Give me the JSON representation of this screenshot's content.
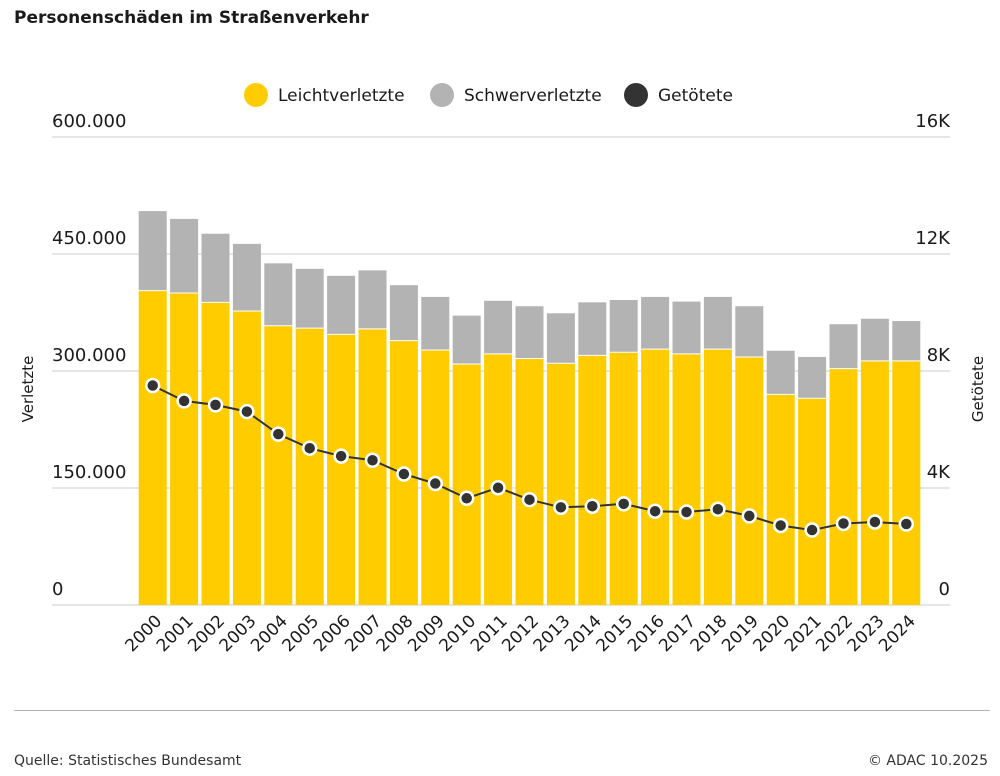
{
  "title": "Personenschäden im Straßenverkehr",
  "footer": {
    "source": "Quelle: Statistisches Bundesamt",
    "copyright": "© ADAC 10.2025"
  },
  "colors": {
    "leicht": "#ffcc00",
    "schwer": "#b3b3b3",
    "getoetete": "#333333",
    "grid": "#cccccc"
  },
  "chart_data": {
    "type": "bar",
    "stacked": true,
    "title": "Personenschäden im Straßenverkehr",
    "categories": [
      "2000",
      "2001",
      "2002",
      "2003",
      "2004",
      "2005",
      "2006",
      "2007",
      "2008",
      "2009",
      "2010",
      "2011",
      "2012",
      "2013",
      "2014",
      "2015",
      "2016",
      "2017",
      "2018",
      "2019",
      "2020",
      "2021",
      "2022",
      "2023",
      "2024"
    ],
    "ylabel_left": "Verletzte",
    "ylabel_right": "Getötete",
    "ylim_left": [
      0,
      600000
    ],
    "ylim_right": [
      0,
      16000
    ],
    "yticks_left": [
      "0",
      "150.000",
      "300.000",
      "450.000",
      "600.000"
    ],
    "yticks_right": [
      "0",
      "4K",
      "8K",
      "12K",
      "16K"
    ],
    "legend_position": "top-center",
    "grid": true,
    "series": [
      {
        "name": "Leichtverletzte",
        "type": "bar",
        "axis": "left",
        "values": [
          403000,
          400000,
          388000,
          377000,
          358000,
          355000,
          347000,
          354000,
          339000,
          327000,
          309000,
          322000,
          316000,
          310000,
          320000,
          324000,
          328000,
          322000,
          328000,
          318000,
          270000,
          265000,
          303000,
          313000,
          313000
        ]
      },
      {
        "name": "Schwerverletzte",
        "type": "bar",
        "axis": "left",
        "values": [
          102000,
          95000,
          88000,
          86000,
          80000,
          76000,
          75000,
          75000,
          71000,
          68000,
          62000,
          68000,
          67000,
          64000,
          68000,
          67000,
          67000,
          67000,
          67000,
          65000,
          56000,
          53000,
          57000,
          54000,
          51000
        ]
      },
      {
        "name": "Getötete",
        "type": "line",
        "axis": "right",
        "values": [
          7503,
          6977,
          6842,
          6613,
          5842,
          5361,
          5091,
          4949,
          4477,
          4152,
          3648,
          4009,
          3600,
          3339,
          3377,
          3459,
          3206,
          3180,
          3275,
          3046,
          2719,
          2562,
          2788,
          2839,
          2770
        ]
      }
    ]
  }
}
